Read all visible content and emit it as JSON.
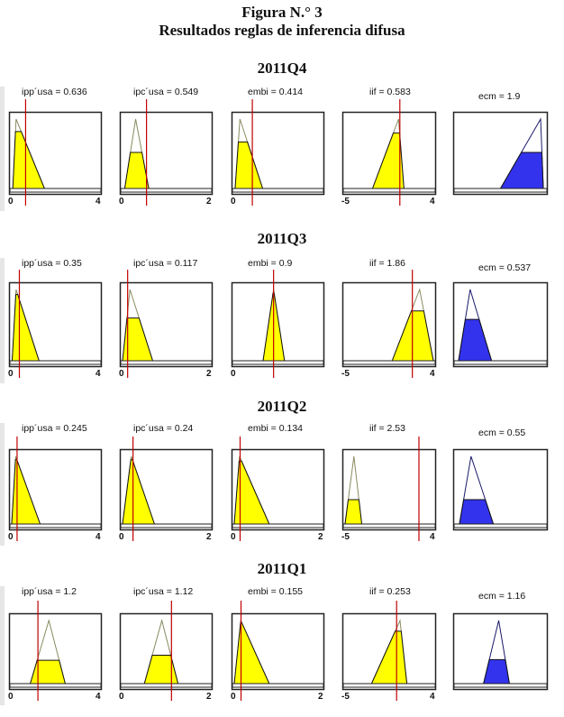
{
  "title": "Figura N.° 3",
  "subtitle": "Resultados reglas de inferencia difusa",
  "colors": {
    "input_fill": "#ffff00",
    "output_fill": "#3333ee",
    "marker": "#c00000",
    "frame": "#222222",
    "mf_outline": "#8a8a60"
  },
  "chart_data": [
    {
      "type": "area",
      "period": "2011Q4",
      "panels": [
        {
          "var": "ipp'usa",
          "label": "ipp´usa = 0.636",
          "value": 0.636,
          "xmin": 0,
          "xmax": 4,
          "tick_min": "0",
          "tick_max": "4",
          "mf": [
            0.05,
            0.2,
            1.5
          ],
          "level": 0.82,
          "kind": "input"
        },
        {
          "var": "ipc'usa",
          "label": "ipc´usa = 0.549",
          "value": 0.549,
          "xmin": 0,
          "xmax": 2,
          "tick_min": "0",
          "tick_max": "2",
          "mf": [
            0.05,
            0.3,
            0.6
          ],
          "level": 0.52,
          "kind": "input"
        },
        {
          "var": "embi",
          "label": "embi = 0.414",
          "value": 0.414,
          "xmin": 0,
          "xmax": 2,
          "tick_min": "0",
          "tick_max": "",
          "mf": [
            0.02,
            0.13,
            0.65
          ],
          "level": 0.67,
          "kind": "input"
        },
        {
          "var": "iif",
          "label": "iif = 0.583",
          "value": 0.583,
          "xmin": -5,
          "xmax": 4,
          "tick_min": "-5",
          "tick_max": "4",
          "mf": [
            -2.2,
            0.45,
            1.0
          ],
          "level": 0.8,
          "kind": "input"
        },
        {
          "var": "ecm",
          "label": "ecm = 1.9",
          "value": 1.9,
          "mf": [
            0.5,
            0.95,
            0.98
          ],
          "level": 0.52,
          "kind": "output"
        }
      ]
    },
    {
      "type": "area",
      "period": "2011Q3",
      "panels": [
        {
          "var": "ipp'usa",
          "label": "ipp´usa = 0.35",
          "value": 0.35,
          "xmin": 0,
          "xmax": 4,
          "tick_min": "0",
          "tick_max": "4",
          "tick_max_label": "4",
          "mf": [
            0.02,
            0.2,
            1.25
          ],
          "level": 0.93,
          "kind": "input"
        },
        {
          "var": "ipc'usa",
          "label": "ipc´usa = 0.117",
          "value": 0.117,
          "xmin": 0,
          "xmax": 2,
          "tick_min": "0",
          "tick_max": "2",
          "mf": [
            0.0,
            0.17,
            0.69
          ],
          "level": 0.6,
          "kind": "input"
        },
        {
          "var": "embi",
          "label": "embi = 0.9",
          "value": 0.9,
          "xmin": 0,
          "xmax": 2,
          "tick_min": "0",
          "tick_max": "",
          "mf": [
            0.66,
            0.9,
            1.15
          ],
          "level": 0.95,
          "kind": "input"
        },
        {
          "var": "iif",
          "label": "iif = 1.86",
          "value": 1.86,
          "xmin": -5,
          "xmax": 4,
          "tick_min": "-5",
          "tick_max": "4",
          "mf": [
            -0.2,
            2.6,
            4.0
          ],
          "level": 0.7,
          "kind": "input"
        },
        {
          "var": "ecm",
          "label": "ecm = 0.537",
          "value": 0.537,
          "mf": [
            0.03,
            0.16,
            0.4
          ],
          "level": 0.58,
          "kind": "output"
        }
      ]
    },
    {
      "type": "area",
      "period": "2011Q2",
      "panels": [
        {
          "var": "ipp'usa",
          "label": "ipp´usa = 0.245",
          "value": 0.245,
          "xmin": 0,
          "xmax": 4,
          "tick_min": "0",
          "tick_max": "4",
          "mf": [
            0.0,
            0.18,
            1.3
          ],
          "level": 0.95,
          "kind": "input"
        },
        {
          "var": "ipc'usa",
          "label": "ipc´usa = 0.24",
          "value": 0.24,
          "xmin": 0,
          "xmax": 2,
          "tick_min": "0",
          "tick_max": "2",
          "mf": [
            0.0,
            0.2,
            0.73
          ],
          "level": 0.95,
          "kind": "input"
        },
        {
          "var": "embi",
          "label": "embi = 0.134",
          "value": 0.134,
          "xmin": 0,
          "xmax": 2,
          "tick_min": "0",
          "tick_max": "2",
          "mf": [
            0.0,
            0.12,
            0.8
          ],
          "level": 0.93,
          "kind": "input"
        },
        {
          "var": "iif",
          "label": "iif = 2.53",
          "value": 2.53,
          "xmin": -5,
          "xmax": 4,
          "tick_min": "-5",
          "tick_max": "4",
          "mf": [
            -5.0,
            -4.1,
            -3.3
          ],
          "level": 0.36,
          "kind": "input"
        },
        {
          "var": "ecm",
          "label": "ecm = 0.55",
          "value": 0.55,
          "mf": [
            0.04,
            0.17,
            0.42
          ],
          "level": 0.36,
          "kind": "output"
        }
      ]
    },
    {
      "type": "area",
      "period": "2011Q1",
      "panels": [
        {
          "var": "ipp'usa",
          "label": "ipp´usa = 1.2",
          "value": 1.2,
          "xmin": 0,
          "xmax": 4,
          "tick_min": "0",
          "tick_max": "4",
          "mf": [
            0.85,
            1.7,
            2.45
          ],
          "level": 0.37,
          "kind": "input"
        },
        {
          "var": "ipc'usa",
          "label": "ipc´usa = 1.12",
          "value": 1.12,
          "xmin": 0,
          "xmax": 2,
          "tick_min": "0",
          "tick_max": "2",
          "mf": [
            0.5,
            0.9,
            1.27
          ],
          "level": 0.45,
          "kind": "input"
        },
        {
          "var": "embi",
          "label": "embi = 0.155",
          "value": 0.155,
          "xmin": 0,
          "xmax": 2,
          "tick_min": "0",
          "tick_max": "2",
          "mf": [
            0.0,
            0.15,
            0.8
          ],
          "level": 0.97,
          "kind": "input"
        },
        {
          "var": "iif",
          "label": "iif = 0.253",
          "value": 0.253,
          "xmin": -5,
          "xmax": 4,
          "tick_min": "-5",
          "tick_max": "4",
          "mf": [
            -2.3,
            0.6,
            1.3
          ],
          "level": 0.83,
          "kind": "input"
        },
        {
          "var": "ecm",
          "label": "ecm = 1.16",
          "value": 1.16,
          "mf": [
            0.31,
            0.48,
            0.6
          ],
          "level": 0.38,
          "kind": "output"
        }
      ]
    }
  ]
}
